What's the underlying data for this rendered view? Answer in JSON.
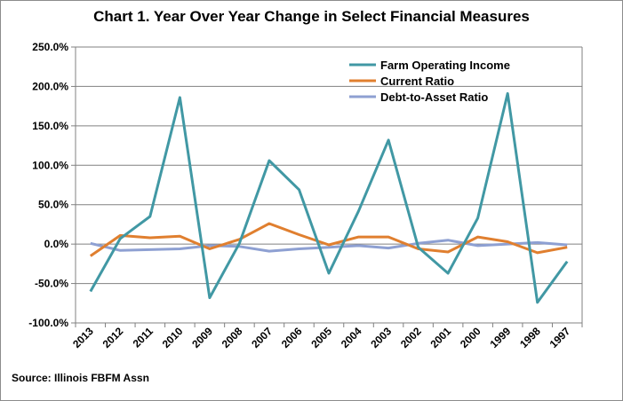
{
  "chart_data": {
    "type": "line",
    "title": "Chart 1.  Year Over Year Change in Select Financial Measures",
    "source": "Source:  Illinois  FBFM  Assn",
    "categories": [
      "2013",
      "2012",
      "2011",
      "2010",
      "2009",
      "2008",
      "2007",
      "2006",
      "2005",
      "2004",
      "2003",
      "2002",
      "2001",
      "2000",
      "1999",
      "1998",
      "1997"
    ],
    "y_ticks": [
      "250.0%",
      "200.0%",
      "150.0%",
      "100.0%",
      "50.0%",
      "0.0%",
      "-50.0%",
      "-100.0%"
    ],
    "ylim": [
      -100,
      250
    ],
    "y_unit": "%",
    "grid": true,
    "legend_position": "top-right",
    "series": [
      {
        "name": "Farm Operating Income",
        "color": "#4198a4",
        "values": [
          -60,
          7,
          35,
          186,
          -68,
          1,
          106,
          69,
          -37,
          42,
          132,
          -4,
          -37,
          33,
          191,
          -74,
          -22
        ]
      },
      {
        "name": "Current Ratio",
        "color": "#e07f2f",
        "values": [
          -15,
          11,
          8,
          10,
          -6,
          6,
          26,
          12,
          -1,
          9,
          9,
          -6,
          -10,
          9,
          3,
          -11,
          -4
        ]
      },
      {
        "name": "Debt-to-Asset Ratio",
        "color": "#8ea0d2",
        "values": [
          1,
          -8,
          -7,
          -6,
          -2,
          -3,
          -9,
          -6,
          -4,
          -2,
          -5,
          1,
          5,
          -2,
          0,
          2,
          -1
        ]
      }
    ]
  }
}
